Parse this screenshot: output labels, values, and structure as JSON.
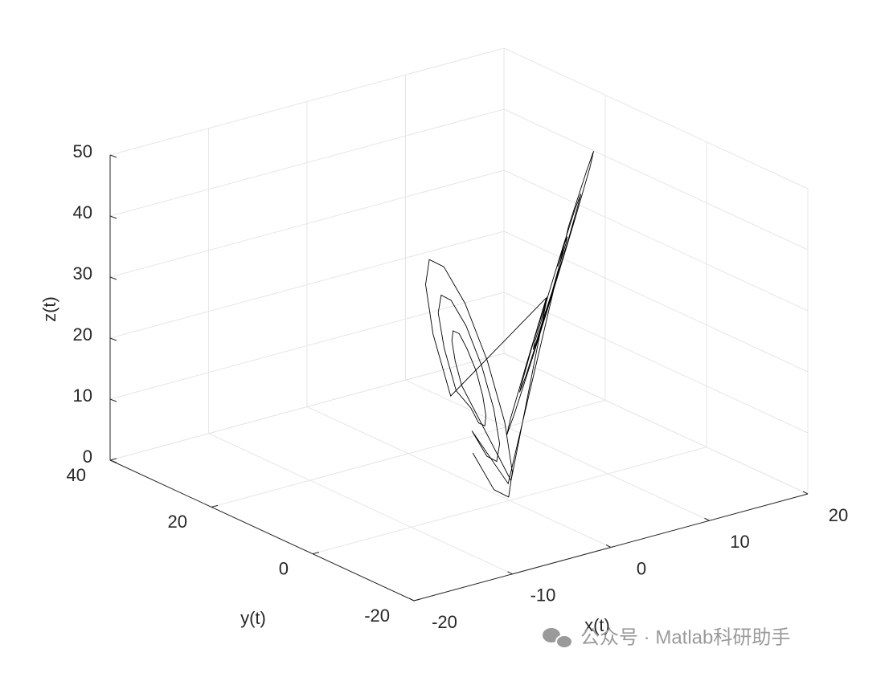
{
  "chart_data": {
    "type": "line3d",
    "xlabel": "x(t)",
    "ylabel": "y(t)",
    "zlabel": "z(t)",
    "xlim": [
      -20,
      20
    ],
    "ylim": [
      -20,
      40
    ],
    "zlim": [
      0,
      50
    ],
    "xticks": [
      -20,
      -10,
      0,
      10,
      20
    ],
    "yticks": [
      -20,
      0,
      20,
      40
    ],
    "zticks": [
      0,
      10,
      20,
      30,
      40,
      50
    ],
    "grid": true,
    "series": [
      {
        "color": "#000000",
        "x": [
          11.3,
          11.5,
          10.9,
          9.7,
          8.1,
          6.7,
          5.7,
          5.5,
          6.1,
          7.3,
          8.9,
          10.3,
          13.4,
          13.8,
          12.8,
          10.6,
          7.9,
          5.3,
          3.6,
          3.2,
          4.2,
          6.4,
          9.1,
          11.7,
          0.3,
          -11.3,
          -11.5,
          -10.9,
          -9.7,
          -8.1,
          -6.7,
          -5.7,
          -5.5,
          -6.1,
          -7.3,
          -8.9,
          -10.3,
          -13.4,
          -13.8,
          -12.8,
          -10.6,
          -7.9,
          -5.3,
          -3.6,
          -3.2,
          -4.2,
          -6.4,
          -9.1,
          -11.7,
          -0.3,
          15.5,
          16.1,
          14.6,
          11.5,
          7.6,
          3.9,
          1.5,
          0.9,
          2.4,
          5.5,
          9.4,
          13.1,
          -15.5,
          -16.1,
          -14.6,
          -11.5,
          -7.6,
          -3.9,
          -1.5,
          -0.9,
          -2.4,
          -5.5,
          -9.4,
          -13.1
        ],
        "y": [
          12.5,
          11.6,
          9.8,
          7.7,
          5.8,
          4.6,
          4.5,
          5.4,
          7.2,
          9.3,
          11.2,
          12.4,
          15.5,
          13.9,
          10.8,
          7.1,
          3.8,
          1.7,
          1.5,
          3.1,
          6.2,
          9.9,
          13.2,
          15.3,
          0.3,
          -12.5,
          -11.6,
          -9.8,
          -7.7,
          -5.8,
          -4.6,
          -4.5,
          -5.4,
          -7.2,
          -9.3,
          -11.2,
          -12.4,
          -15.5,
          -13.9,
          -10.8,
          -7.1,
          -3.8,
          -1.7,
          -1.5,
          -3.1,
          -6.2,
          -9.9,
          -13.2,
          -15.3,
          -0.3,
          18.5,
          16.2,
          11.8,
          6.5,
          1.8,
          -1.2,
          -1.5,
          0.8,
          5.2,
          10.5,
          15.2,
          18.2,
          -18.5,
          -16.2,
          -11.8,
          -6.5,
          -1.8,
          1.2,
          1.5,
          -0.8,
          -5.2,
          -10.5,
          -15.2,
          -18.2
        ],
        "z": [
          28.6,
          32.4,
          34.7,
          35,
          33.1,
          29.6,
          25.4,
          21.6,
          19.3,
          19,
          20.9,
          24.4,
          29.8,
          36.4,
          40.5,
          41,
          37.7,
          31.6,
          24.2,
          17.6,
          13.5,
          13,
          16.3,
          22.4,
          3,
          28.6,
          32.4,
          34.7,
          35,
          33.1,
          29.6,
          25.4,
          21.6,
          19.3,
          19,
          20.9,
          24.4,
          29.8,
          36.4,
          40.5,
          41,
          37.7,
          31.6,
          24.2,
          17.6,
          13.5,
          13,
          16.3,
          22.4,
          3,
          31,
          40.5,
          46.3,
          47,
          42.3,
          33.5,
          23,
          13.5,
          7.7,
          7,
          11.7,
          20.5,
          31,
          40.5,
          46.3,
          47,
          42.3,
          33.5,
          23,
          13.5,
          7.7,
          7,
          11.7,
          20.5
        ]
      }
    ]
  },
  "watermark": "公众号 · Matlab科研助手"
}
